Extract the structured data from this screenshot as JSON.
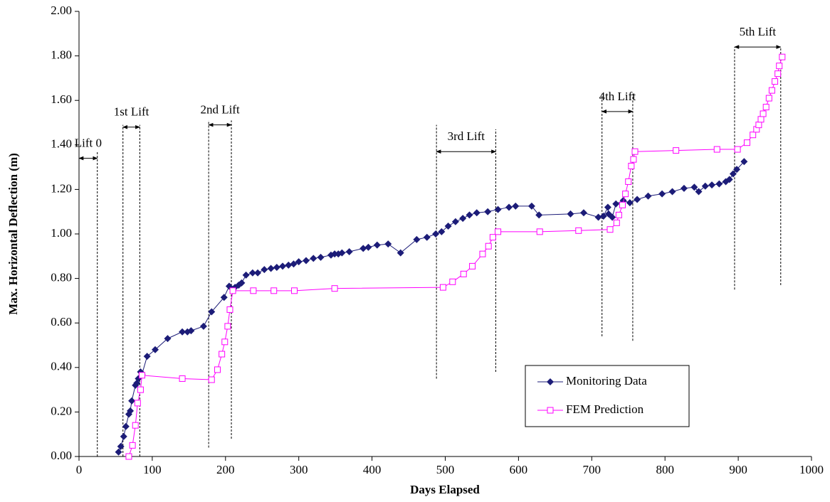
{
  "chart_data": {
    "type": "line",
    "x_label": "Days Elapsed",
    "y_label": "Max. Horizontal Deflection (m)",
    "xlim": [
      0,
      1000
    ],
    "ylim": [
      0,
      2
    ],
    "xticks": [
      0,
      100,
      200,
      300,
      400,
      500,
      600,
      700,
      800,
      900,
      1000
    ],
    "yticks": [
      {
        "value": 0,
        "label": "0.00"
      },
      {
        "value": 0.2,
        "label": "0.20"
      },
      {
        "value": 0.4,
        "label": "0.40"
      },
      {
        "value": 0.6,
        "label": "0.60"
      },
      {
        "value": 0.8,
        "label": "0.80"
      },
      {
        "value": 1.0,
        "label": "1.00"
      },
      {
        "value": 1.2,
        "label": "1.20"
      },
      {
        "value": 1.4,
        "label": "1.40"
      },
      {
        "value": 1.6,
        "label": "1.60"
      },
      {
        "value": 1.8,
        "label": "1.80"
      },
      {
        "value": 2.0,
        "label": "2.00"
      }
    ],
    "legend": "lower right",
    "series": [
      {
        "name": "Monitoring Data",
        "color": "#1c1c78",
        "marker": "diamond",
        "x": [
          54,
          57,
          61,
          64,
          68,
          70,
          72,
          77,
          79,
          81,
          84,
          86,
          93,
          104,
          121,
          141,
          148,
          153,
          170,
          181,
          198,
          205,
          213,
          218,
          222,
          228,
          237,
          244,
          253,
          262,
          270,
          278,
          286,
          293,
          300,
          310,
          320,
          330,
          344,
          349,
          354,
          359,
          369,
          388,
          395,
          407,
          422,
          439,
          461,
          475,
          487,
          495,
          504,
          514,
          524,
          533,
          543,
          558,
          572,
          587,
          596,
          618,
          628,
          671,
          689,
          709,
          716,
          722,
          723,
          728,
          733,
          743,
          752,
          762,
          777,
          796,
          810,
          826,
          840,
          846,
          855,
          864,
          874,
          883,
          888,
          893,
          898,
          908
        ],
        "values": [
          0.02,
          0.045,
          0.09,
          0.135,
          0.19,
          0.205,
          0.25,
          0.32,
          0.33,
          0.35,
          0.38,
          0.37,
          0.45,
          0.48,
          0.53,
          0.56,
          0.56,
          0.565,
          0.585,
          0.65,
          0.715,
          0.765,
          0.76,
          0.77,
          0.78,
          0.815,
          0.825,
          0.825,
          0.84,
          0.845,
          0.85,
          0.855,
          0.86,
          0.865,
          0.875,
          0.88,
          0.89,
          0.895,
          0.905,
          0.91,
          0.91,
          0.915,
          0.92,
          0.935,
          0.94,
          0.95,
          0.955,
          0.915,
          0.975,
          0.985,
          1.0,
          1.01,
          1.035,
          1.055,
          1.07,
          1.085,
          1.095,
          1.1,
          1.11,
          1.12,
          1.125,
          1.125,
          1.085,
          1.09,
          1.095,
          1.075,
          1.08,
          1.12,
          1.09,
          1.075,
          1.135,
          1.15,
          1.14,
          1.155,
          1.17,
          1.18,
          1.19,
          1.205,
          1.21,
          1.19,
          1.215,
          1.22,
          1.225,
          1.235,
          1.245,
          1.27,
          1.29,
          1.325
        ]
      },
      {
        "name": "FEM Prediction",
        "color": "#ff00ff",
        "marker": "square",
        "x": [
          68,
          73,
          77,
          80,
          84,
          86,
          141,
          181,
          189,
          195,
          199,
          203,
          206,
          210,
          238,
          266,
          294,
          349,
          497,
          510,
          525,
          537,
          551,
          559,
          565,
          572,
          629,
          682,
          725,
          734,
          737,
          742,
          746,
          750,
          754,
          757,
          759,
          815,
          871,
          899,
          912,
          920,
          925,
          928,
          931,
          934,
          938,
          942,
          946,
          950,
          954,
          956,
          960
        ],
        "values": [
          0.0,
          0.05,
          0.14,
          0.24,
          0.3,
          0.365,
          0.35,
          0.345,
          0.39,
          0.46,
          0.515,
          0.585,
          0.66,
          0.745,
          0.745,
          0.745,
          0.745,
          0.755,
          0.76,
          0.785,
          0.82,
          0.855,
          0.91,
          0.945,
          0.985,
          1.01,
          1.01,
          1.015,
          1.02,
          1.05,
          1.085,
          1.13,
          1.18,
          1.235,
          1.305,
          1.335,
          1.37,
          1.375,
          1.38,
          1.38,
          1.41,
          1.445,
          1.47,
          1.49,
          1.515,
          1.54,
          1.57,
          1.61,
          1.645,
          1.685,
          1.72,
          1.755,
          1.795
        ]
      }
    ],
    "lift_markers": [
      {
        "label": "Lift 0",
        "from": 0,
        "to": 25,
        "arrow_y": 1.34,
        "lines": [
          {
            "x": 25,
            "y": [
              0,
              1.37
            ]
          }
        ]
      },
      {
        "label": "1st Lift",
        "from": 60,
        "to": 83,
        "arrow_y": 1.48,
        "lines": [
          {
            "x": 60,
            "y": [
              0,
              1.49
            ]
          },
          {
            "x": 83,
            "y": [
              0,
              1.49
            ]
          }
        ]
      },
      {
        "label": "2nd Lift",
        "from": 177,
        "to": 208,
        "arrow_y": 1.49,
        "lines": [
          {
            "x": 177,
            "y": [
              0.04,
              1.51
            ]
          },
          {
            "x": 208,
            "y": [
              0.08,
              1.51
            ]
          }
        ]
      },
      {
        "label": "3rd Lift",
        "from": 488,
        "to": 569,
        "arrow_y": 1.37,
        "lines": [
          {
            "x": 488,
            "y": [
              0.35,
              1.49
            ]
          },
          {
            "x": 569,
            "y": [
              0.38,
              1.47
            ]
          }
        ]
      },
      {
        "label": "4th Lift",
        "from": 714,
        "to": 756,
        "arrow_y": 1.55,
        "lines": [
          {
            "x": 714,
            "y": [
              0.54,
              1.63
            ]
          },
          {
            "x": 756,
            "y": [
              0.52,
              1.63
            ]
          }
        ]
      },
      {
        "label": "5th Lift",
        "from": 895,
        "to": 958,
        "arrow_y": 1.84,
        "lines": [
          {
            "x": 895,
            "y": [
              0.75,
              1.84
            ]
          },
          {
            "x": 958,
            "y": [
              0.77,
              1.84
            ]
          }
        ]
      }
    ]
  }
}
